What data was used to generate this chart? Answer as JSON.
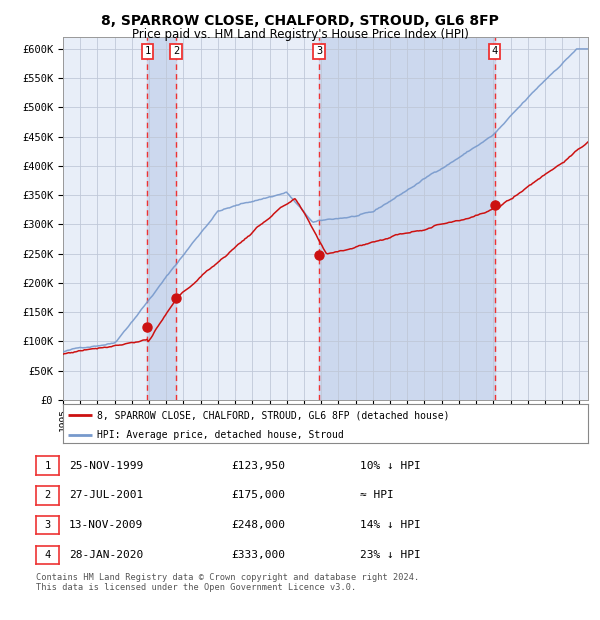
{
  "title": "8, SPARROW CLOSE, CHALFORD, STROUD, GL6 8FP",
  "subtitle": "Price paid vs. HM Land Registry's House Price Index (HPI)",
  "title_fontsize": 10,
  "subtitle_fontsize": 8.5,
  "background_color": "#ffffff",
  "plot_bg_color": "#e8eef8",
  "grid_color": "#c0c8d8",
  "hpi_color": "#7799cc",
  "price_color": "#cc1111",
  "marker_color": "#cc1111",
  "vline_color": "#ee3333",
  "shade_color": "#ccd8ee",
  "ylim": [
    0,
    620000
  ],
  "ytick_step": 50000,
  "purchases": [
    {
      "label": "1",
      "date_num": 1999.9,
      "price": 123950
    },
    {
      "label": "2",
      "date_num": 2001.57,
      "price": 175000
    },
    {
      "label": "3",
      "date_num": 2009.87,
      "price": 248000
    },
    {
      "label": "4",
      "date_num": 2020.07,
      "price": 333000
    }
  ],
  "shade_ranges": [
    [
      1999.9,
      2001.57
    ],
    [
      2009.87,
      2020.07
    ]
  ],
  "legend_line1": "8, SPARROW CLOSE, CHALFORD, STROUD, GL6 8FP (detached house)",
  "legend_line2": "HPI: Average price, detached house, Stroud",
  "table_rows": [
    [
      "1",
      "25-NOV-1999",
      "£123,950",
      "10% ↓ HPI"
    ],
    [
      "2",
      "27-JUL-2001",
      "£175,000",
      "≈ HPI"
    ],
    [
      "3",
      "13-NOV-2009",
      "£248,000",
      "14% ↓ HPI"
    ],
    [
      "4",
      "28-JAN-2020",
      "£333,000",
      "23% ↓ HPI"
    ]
  ],
  "footnote": "Contains HM Land Registry data © Crown copyright and database right 2024.\nThis data is licensed under the Open Government Licence v3.0.",
  "xmin": 1995,
  "xmax": 2025.5
}
